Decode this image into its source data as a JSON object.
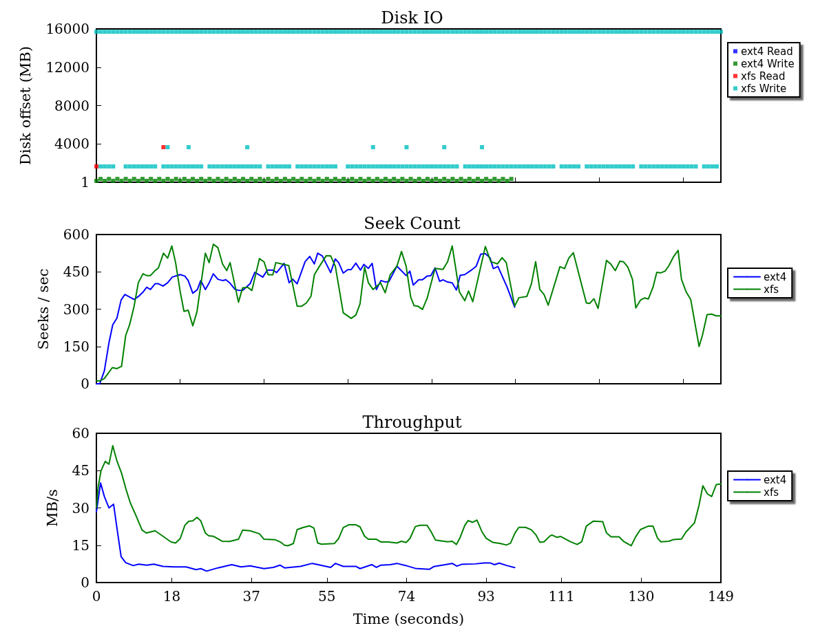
{
  "chart_data": [
    {
      "type": "scatter",
      "title": "Disk IO",
      "ylabel": "Disk offset (MB)",
      "xlim": [
        0,
        149
      ],
      "xticks": [
        {
          "value": 0,
          "label": null
        },
        {
          "value": 20,
          "label": null
        },
        {
          "value": 40,
          "label": null
        },
        {
          "value": 60,
          "label": null
        },
        {
          "value": 80,
          "label": null
        },
        {
          "value": 100,
          "label": null
        },
        {
          "value": 120,
          "label": null
        },
        {
          "value": 140,
          "label": null
        }
      ],
      "ylim": [
        1,
        16000
      ],
      "yticks": [
        1,
        4000,
        8000,
        12000,
        16000
      ],
      "tick_labels": "y",
      "marker": "square",
      "legend": "right",
      "series": [
        {
          "name": "ext4 Read",
          "color": "#0000ff"
        },
        {
          "name": "ext4 Write",
          "color": "#008000",
          "x": [
            0,
            1,
            2,
            3,
            4,
            5,
            6,
            7,
            8,
            9,
            10,
            11,
            12,
            13,
            14,
            15,
            16,
            17,
            18,
            19,
            20,
            21,
            22,
            23,
            24,
            25,
            26,
            27,
            28,
            29,
            30,
            31,
            32,
            33,
            34,
            35,
            36,
            37,
            38,
            39,
            40,
            41,
            42,
            43,
            44,
            45,
            46,
            47,
            48,
            49,
            50,
            51,
            52,
            53,
            54,
            55,
            56,
            57,
            58,
            59,
            60,
            61,
            62,
            63,
            64,
            65,
            66,
            67,
            68,
            69,
            70,
            71,
            72,
            73,
            74,
            75,
            76,
            77,
            78,
            79,
            80,
            81,
            82,
            83,
            84,
            85,
            86,
            87,
            88,
            89,
            90,
            91,
            92,
            93,
            94,
            95,
            96,
            97,
            98,
            99
          ],
          "values": [
            150,
            350,
            150,
            350,
            150,
            350,
            150,
            350,
            150,
            350,
            150,
            350,
            150,
            350,
            150,
            350,
            150,
            350,
            150,
            350,
            150,
            350,
            150,
            350,
            150,
            350,
            150,
            350,
            150,
            350,
            150,
            350,
            150,
            350,
            150,
            350,
            150,
            350,
            150,
            350,
            150,
            350,
            150,
            350,
            150,
            350,
            150,
            350,
            150,
            350,
            150,
            350,
            150,
            350,
            150,
            350,
            150,
            350,
            150,
            350,
            150,
            350,
            150,
            350,
            150,
            350,
            150,
            350,
            150,
            350,
            150,
            350,
            150,
            350,
            150,
            350,
            150,
            350,
            150,
            350,
            150,
            350,
            150,
            350,
            150,
            350,
            150,
            350,
            150,
            350,
            150,
            350,
            150,
            350,
            150,
            350,
            150,
            350,
            150,
            350
          ]
        },
        {
          "name": "xfs Read",
          "color": "#ff0000",
          "x": [
            0,
            16
          ],
          "values": [
            1650,
            3660
          ]
        },
        {
          "name": "xfs Write",
          "color": "#00bfbf",
          "x": [
            0,
            1,
            2,
            3,
            4,
            5,
            6,
            7,
            8,
            9,
            10,
            11,
            12,
            13,
            14,
            15,
            16,
            17,
            18,
            19,
            20,
            21,
            22,
            23,
            24,
            25,
            26,
            27,
            28,
            29,
            30,
            31,
            32,
            33,
            34,
            35,
            36,
            37,
            38,
            39,
            40,
            41,
            42,
            43,
            44,
            45,
            46,
            47,
            48,
            49,
            50,
            51,
            52,
            53,
            54,
            55,
            56,
            57,
            58,
            59,
            60,
            61,
            62,
            63,
            64,
            65,
            66,
            67,
            68,
            69,
            70,
            71,
            72,
            73,
            74,
            75,
            76,
            77,
            78,
            79,
            80,
            81,
            82,
            83,
            84,
            85,
            86,
            87,
            88,
            89,
            90,
            91,
            92,
            93,
            94,
            95,
            96,
            97,
            98,
            99,
            100,
            101,
            102,
            103,
            104,
            105,
            106,
            107,
            108,
            109,
            110,
            111,
            112,
            113,
            114,
            115,
            116,
            117,
            118,
            119,
            120,
            121,
            122,
            123,
            124,
            125,
            126,
            127,
            128,
            129,
            130,
            131,
            132,
            133,
            134,
            135,
            136,
            137,
            138,
            139,
            140,
            141,
            142,
            143,
            144,
            145,
            146,
            147,
            148,
            149,
            1,
            2,
            3,
            4,
            7,
            8,
            9,
            10,
            11,
            12,
            13,
            14,
            16,
            17,
            18,
            19,
            20,
            21,
            22,
            23,
            24,
            25,
            27,
            28,
            29,
            30,
            31,
            32,
            33,
            34,
            35,
            36,
            37,
            38,
            39,
            41,
            42,
            43,
            44,
            45,
            46,
            48,
            49,
            50,
            51,
            52,
            53,
            54,
            55,
            56,
            57,
            60,
            61,
            62,
            63,
            64,
            65,
            66,
            67,
            68,
            69,
            70,
            71,
            72,
            73,
            74,
            75,
            76,
            77,
            78,
            79,
            80,
            81,
            82,
            83,
            84,
            85,
            86,
            88,
            89,
            90,
            91,
            92,
            93,
            94,
            95,
            96,
            97,
            98,
            99,
            100,
            101,
            102,
            103,
            104,
            105,
            106,
            107,
            108,
            109,
            111,
            112,
            113,
            114,
            115,
            117,
            118,
            119,
            120,
            121,
            122,
            123,
            124,
            125,
            126,
            127,
            128,
            130,
            131,
            132,
            133,
            134,
            135,
            136,
            137,
            138,
            139,
            140,
            141,
            142,
            143,
            145,
            146,
            147,
            148,
            17,
            22,
            36,
            66,
            74,
            83,
            92
          ],
          "values": [
            15700,
            15700,
            15700,
            15700,
            15700,
            15700,
            15700,
            15700,
            15700,
            15700,
            15700,
            15700,
            15700,
            15700,
            15700,
            15700,
            15700,
            15700,
            15700,
            15700,
            15700,
            15700,
            15700,
            15700,
            15700,
            15700,
            15700,
            15700,
            15700,
            15700,
            15700,
            15700,
            15700,
            15700,
            15700,
            15700,
            15700,
            15700,
            15700,
            15700,
            15700,
            15700,
            15700,
            15700,
            15700,
            15700,
            15700,
            15700,
            15700,
            15700,
            15700,
            15700,
            15700,
            15700,
            15700,
            15700,
            15700,
            15700,
            15700,
            15700,
            15700,
            15700,
            15700,
            15700,
            15700,
            15700,
            15700,
            15700,
            15700,
            15700,
            15700,
            15700,
            15700,
            15700,
            15700,
            15700,
            15700,
            15700,
            15700,
            15700,
            15700,
            15700,
            15700,
            15700,
            15700,
            15700,
            15700,
            15700,
            15700,
            15700,
            15700,
            15700,
            15700,
            15700,
            15700,
            15700,
            15700,
            15700,
            15700,
            15700,
            15700,
            15700,
            15700,
            15700,
            15700,
            15700,
            15700,
            15700,
            15700,
            15700,
            15700,
            15700,
            15700,
            15700,
            15700,
            15700,
            15700,
            15700,
            15700,
            15700,
            15700,
            15700,
            15700,
            15700,
            15700,
            15700,
            15700,
            15700,
            15700,
            15700,
            15700,
            15700,
            15700,
            15700,
            15700,
            15700,
            15700,
            15700,
            15700,
            15700,
            15700,
            15700,
            15700,
            15700,
            15700,
            15700,
            15700,
            15700,
            15700,
            15700,
            1650,
            1650,
            1650,
            1650,
            1650,
            1650,
            1650,
            1650,
            1650,
            1650,
            1650,
            1650,
            1650,
            1650,
            1650,
            1650,
            1650,
            1650,
            1650,
            1650,
            1650,
            1650,
            1650,
            1650,
            1650,
            1650,
            1650,
            1650,
            1650,
            1650,
            1650,
            1650,
            1650,
            1650,
            1650,
            1650,
            1650,
            1650,
            1650,
            1650,
            1650,
            1650,
            1650,
            1650,
            1650,
            1650,
            1650,
            1650,
            1650,
            1650,
            1650,
            1650,
            1650,
            1650,
            1650,
            1650,
            1650,
            1650,
            1650,
            1650,
            1650,
            1650,
            1650,
            1650,
            1650,
            1650,
            1650,
            1650,
            1650,
            1650,
            1650,
            1650,
            1650,
            1650,
            1650,
            1650,
            1650,
            1650,
            1650,
            1650,
            1650,
            1650,
            1650,
            1650,
            1650,
            1650,
            1650,
            1650,
            1650,
            1650,
            1650,
            1650,
            1650,
            1650,
            1650,
            1650,
            1650,
            1650,
            1650,
            1650,
            1650,
            1650,
            1650,
            1650,
            1650,
            1650,
            1650,
            1650,
            1650,
            1650,
            1650,
            1650,
            1650,
            1650,
            1650,
            1650,
            1650,
            1650,
            1650,
            1650,
            1650,
            1650,
            1650,
            1650,
            1650,
            1650,
            1650,
            1650,
            1650,
            1650,
            1650,
            1650,
            1650,
            1650,
            1650,
            3660,
            3660,
            3660,
            3660,
            3660,
            3660,
            3660
          ]
        }
      ]
    },
    {
      "type": "line",
      "title": "Seek Count",
      "ylabel": "Seeks / sec",
      "xlim": [
        0,
        149
      ],
      "xticks": [
        {
          "value": 0,
          "label": null
        },
        {
          "value": 20,
          "label": null
        },
        {
          "value": 40,
          "label": null
        },
        {
          "value": 60,
          "label": null
        },
        {
          "value": 80,
          "label": null
        },
        {
          "value": 100,
          "label": null
        },
        {
          "value": 120,
          "label": null
        },
        {
          "value": 140,
          "label": null
        }
      ],
      "ylim": [
        0,
        600
      ],
      "yticks": [
        0,
        150,
        300,
        450,
        600
      ],
      "tick_labels": "y",
      "marker": "none",
      "line_style": "solid",
      "legend": "right",
      "series": [
        {
          "name": "ext4",
          "color": "#0000ff",
          "x": [
            0,
            0.8,
            1.9,
            3.0,
            3.9,
            4.9,
            5.9,
            6.8,
            9.0,
            10.1,
            11.2,
            12.0,
            12.9,
            14.0,
            14.8,
            15.9,
            17.0,
            18.1,
            20.0,
            21.1,
            21.9,
            23.0,
            24.1,
            24.9,
            26.0,
            26.8,
            27.9,
            29.0,
            30.1,
            30.9,
            31.8,
            33.1,
            34.2,
            35.0,
            36.7,
            37.8,
            39.7,
            40.8,
            42.2,
            43.0,
            44.8,
            46.0,
            46.8,
            47.9,
            49.8,
            50.9,
            52.0,
            52.8,
            53.9,
            55.9,
            57.0,
            57.8,
            58.9,
            60.0,
            60.8,
            61.9,
            63.0,
            63.8,
            64.9,
            65.8,
            66.8,
            67.9,
            69.0,
            69.8,
            71.7,
            73.9,
            74.8,
            75.6,
            76.9,
            77.8,
            78.9,
            79.8,
            80.8,
            81.9,
            82.7,
            83.8,
            84.9,
            85.9,
            86.8,
            87.9,
            89.3,
            90.6,
            91.7,
            92.8,
            93.9,
            94.7,
            95.8,
            98.0,
            99.8
          ],
          "values": [
            0,
            0,
            52,
            165,
            237,
            264,
            337,
            359,
            339,
            352,
            370,
            388,
            379,
            402,
            402,
            393,
            406,
            429,
            439,
            433,
            415,
            364,
            379,
            415,
            379,
            402,
            442,
            420,
            415,
            418,
            406,
            379,
            375,
            377,
            403,
            448,
            429,
            457,
            457,
            447,
            484,
            406,
            421,
            402,
            491,
            512,
            482,
            525,
            514,
            447,
            502,
            487,
            445,
            459,
            459,
            485,
            457,
            480,
            464,
            484,
            379,
            415,
            409,
            411,
            473,
            435,
            453,
            397,
            418,
            418,
            433,
            435,
            466,
            412,
            418,
            409,
            406,
            377,
            436,
            439,
            455,
            472,
            521,
            523,
            507,
            463,
            472,
            388,
            308
          ]
        },
        {
          "name": "xfs",
          "color": "#008000",
          "x": [
            0,
            0.8,
            1.9,
            3.8,
            4.9,
            6.0,
            7.0,
            7.9,
            9.0,
            10.0,
            11.1,
            12.0,
            12.9,
            14.0,
            14.8,
            16.0,
            17.0,
            18.0,
            18.9,
            20.0,
            20.9,
            21.9,
            23.0,
            24.0,
            26.0,
            26.9,
            27.9,
            29.0,
            30.1,
            31.1,
            31.9,
            33.9,
            34.9,
            36.1,
            37.1,
            38.9,
            40.0,
            41.0,
            42.1,
            42.8,
            44.8,
            45.9,
            47.9,
            49.0,
            50.1,
            51.2,
            52.0,
            53.1,
            54.8,
            55.9,
            57.0,
            58.9,
            60.8,
            61.9,
            62.9,
            64.0,
            64.9,
            66.0,
            67.8,
            68.9,
            70.1,
            71.7,
            72.8,
            73.9,
            75.0,
            75.8,
            76.7,
            77.8,
            78.9,
            80.8,
            82.7,
            83.8,
            84.9,
            86.6,
            87.9,
            88.8,
            89.8,
            92.8,
            94.1,
            95.7,
            96.8,
            97.8,
            99.8,
            100.8,
            102.7,
            103.8,
            104.8,
            105.8,
            106.8,
            107.8,
            110.6,
            111.7,
            112.7,
            113.8,
            116.9,
            117.7,
            118.7,
            119.7,
            121.7,
            122.7,
            123.8,
            124.9,
            125.8,
            126.8,
            127.9,
            128.7,
            129.8,
            130.8,
            131.7,
            132.8,
            133.7,
            134.7,
            135.7,
            136.6,
            137.7,
            138.8,
            139.6,
            140.7,
            141.8,
            143.8,
            144.6,
            145.7,
            146.8,
            147.9,
            149
          ],
          "values": [
            12,
            12,
            21,
            65,
            61,
            70,
            195,
            236,
            312,
            406,
            442,
            435,
            435,
            455,
            466,
            525,
            505,
            554,
            487,
            370,
            291,
            296,
            233,
            290,
            525,
            487,
            561,
            547,
            482,
            455,
            487,
            328,
            386,
            388,
            375,
            503,
            490,
            438,
            438,
            487,
            480,
            475,
            312,
            312,
            325,
            352,
            438,
            469,
            514,
            514,
            473,
            285,
            263,
            276,
            321,
            469,
            406,
            379,
            406,
            366,
            438,
            473,
            532,
            473,
            348,
            314,
            312,
            299,
            343,
            464,
            460,
            491,
            554,
            370,
            334,
            373,
            330,
            552,
            491,
            482,
            507,
            487,
            312,
            346,
            351,
            402,
            491,
            379,
            359,
            316,
            471,
            463,
            505,
            527,
            325,
            323,
            342,
            303,
            496,
            482,
            455,
            493,
            490,
            469,
            420,
            305,
            336,
            345,
            341,
            388,
            448,
            446,
            453,
            475,
            511,
            536,
            420,
            370,
            339,
            150,
            195,
            278,
            280,
            273,
            273
          ]
        }
      ]
    },
    {
      "type": "line",
      "title": "Throughput",
      "xlabel": "Time (seconds)",
      "ylabel": "MB/s",
      "xlim": [
        0,
        149
      ],
      "xticks": [
        0,
        18,
        37,
        55,
        74,
        93,
        111,
        130,
        149
      ],
      "ylim": [
        0,
        60
      ],
      "yticks": [
        0,
        15,
        30,
        45,
        60
      ],
      "marker": "none",
      "line_style": "solid",
      "legend": "right",
      "series": [
        {
          "name": "ext4",
          "color": "#0000ff",
          "x": [
            0,
            1.0,
            1.9,
            3.0,
            4.1,
            5.0,
            5.9,
            7.0,
            8.8,
            10.1,
            12.0,
            13.7,
            15.9,
            18.6,
            21.4,
            23.8,
            24.9,
            26.3,
            29.0,
            32.3,
            34.5,
            36.7,
            40.0,
            42.2,
            43.8,
            44.9,
            48.7,
            51.5,
            53.1,
            55.9,
            57.0,
            58.9,
            61.9,
            62.9,
            65.7,
            66.8,
            67.9,
            70.1,
            71.7,
            73.9,
            76.1,
            79.4,
            80.5,
            83.0,
            84.9,
            86.0,
            87.1,
            90.4,
            92.6,
            93.9,
            95.0,
            96.1,
            98.0,
            99.8
          ],
          "values": [
            28.4,
            40.0,
            34.6,
            30.0,
            31.5,
            20.8,
            10.4,
            8.0,
            6.8,
            7.4,
            7.0,
            7.4,
            6.5,
            6.3,
            6.3,
            5.2,
            5.6,
            4.6,
            5.9,
            7.2,
            6.3,
            6.7,
            5.6,
            6.1,
            7.0,
            5.9,
            6.5,
            7.7,
            7.1,
            6.1,
            7.7,
            6.5,
            6.5,
            5.6,
            7.2,
            6.1,
            7.0,
            7.2,
            7.7,
            6.8,
            5.7,
            5.3,
            6.4,
            7.1,
            7.7,
            6.6,
            7.3,
            7.5,
            7.9,
            7.9,
            7.2,
            7.8,
            6.8,
            6.0
          ]
        },
        {
          "name": "xfs",
          "color": "#008000",
          "x": [
            0,
            0.4,
            1.1,
            2.1,
            3.0,
            3.9,
            4.9,
            6.0,
            7.1,
            8.1,
            9.3,
            10.9,
            11.9,
            14.0,
            15.9,
            17.8,
            18.9,
            20.0,
            21.1,
            22.0,
            23.0,
            24.0,
            24.9,
            26.0,
            26.8,
            27.9,
            30.0,
            31.8,
            33.9,
            34.9,
            36.7,
            38.9,
            40.0,
            42.7,
            43.9,
            44.9,
            45.7,
            47.0,
            47.9,
            49.3,
            50.9,
            51.9,
            52.8,
            53.7,
            56.8,
            57.8,
            58.9,
            60.2,
            61.9,
            62.9,
            64.0,
            64.9,
            66.8,
            67.9,
            69.6,
            71.7,
            72.8,
            73.9,
            74.8,
            76.1,
            77.2,
            78.9,
            79.8,
            80.9,
            83.8,
            84.9,
            85.9,
            86.8,
            87.9,
            88.7,
            89.8,
            90.8,
            92.0,
            93.0,
            94.5,
            96.4,
            97.8,
            98.8,
            99.9,
            100.8,
            102.4,
            103.8,
            104.9,
            105.8,
            106.8,
            108.2,
            108.7,
            109.8,
            110.8,
            113.1,
            114.7,
            115.8,
            116.9,
            118.6,
            120.8,
            121.7,
            122.8,
            124.7,
            125.9,
            127.6,
            128.7,
            129.8,
            131.7,
            132.8,
            133.9,
            134.7,
            136.6,
            137.7,
            139.6,
            140.7,
            142.7,
            143.8,
            144.7,
            145.8,
            146.8,
            147.9,
            149
          ],
          "values": [
            30.2,
            38.2,
            44.9,
            48.7,
            47.6,
            55.0,
            48.9,
            44.0,
            37.3,
            32.0,
            27.5,
            21.1,
            19.9,
            20.8,
            18.6,
            16.3,
            15.9,
            17.7,
            23.0,
            24.6,
            24.8,
            26.2,
            24.8,
            19.9,
            18.8,
            18.6,
            16.6,
            16.5,
            17.4,
            21.1,
            20.8,
            19.6,
            17.4,
            17.2,
            16.3,
            15.0,
            14.8,
            15.7,
            21.3,
            22.1,
            22.8,
            21.9,
            15.9,
            15.4,
            15.7,
            17.7,
            22.1,
            23.2,
            23.2,
            22.4,
            18.6,
            17.4,
            17.4,
            16.3,
            16.3,
            15.9,
            16.6,
            16.1,
            17.7,
            22.5,
            23.0,
            23.0,
            20.6,
            17.1,
            16.4,
            16.6,
            15.3,
            18.2,
            23.0,
            24.9,
            24.2,
            25.1,
            20.4,
            17.8,
            16.2,
            15.7,
            15.1,
            15.8,
            20.0,
            22.2,
            22.2,
            21.2,
            19.1,
            16.2,
            16.4,
            18.7,
            19.1,
            18.2,
            18.5,
            16.4,
            15.3,
            16.4,
            22.7,
            24.7,
            24.5,
            20.0,
            18.4,
            18.4,
            16.4,
            14.8,
            18.5,
            21.3,
            22.7,
            22.7,
            17.8,
            16.4,
            16.6,
            17.3,
            17.5,
            20.4,
            24.0,
            31.2,
            38.9,
            35.6,
            34.6,
            39.4,
            39.6
          ]
        }
      ]
    }
  ]
}
